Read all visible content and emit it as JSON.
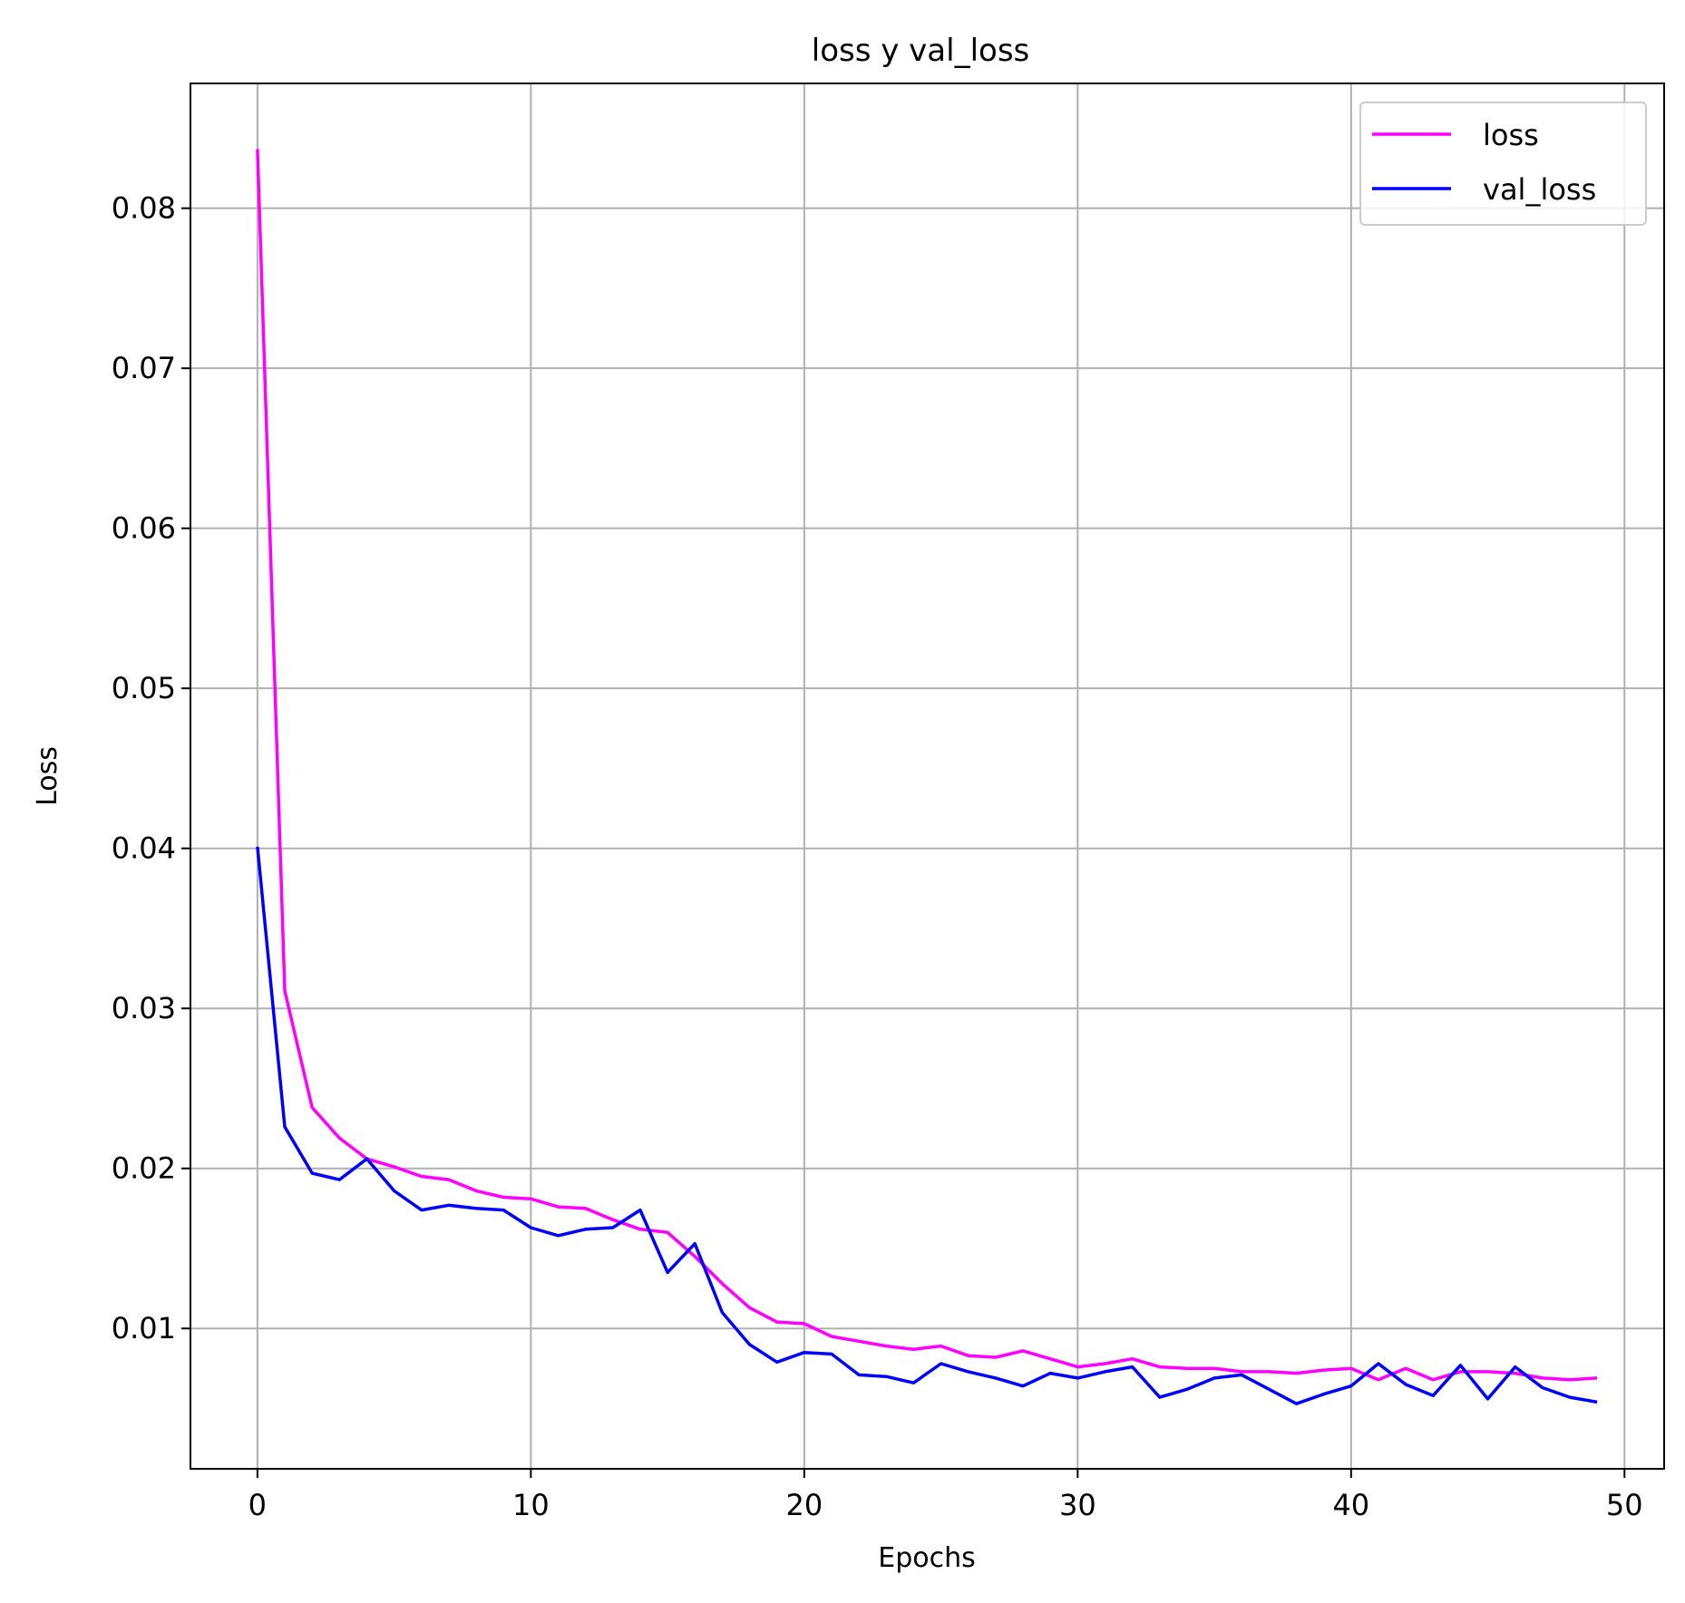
{
  "chart_data": {
    "type": "line",
    "title": "loss y val_loss",
    "xlabel": "Epochs",
    "ylabel": "Loss",
    "xlim": [
      -2.45,
      51.45
    ],
    "ylim": [
      0.00123,
      0.0878
    ],
    "xticks": [
      0,
      10,
      20,
      30,
      40,
      50
    ],
    "yticks": [
      0.01,
      0.02,
      0.03,
      0.04,
      0.05,
      0.06,
      0.07,
      0.08
    ],
    "xtick_labels": [
      "0",
      "10",
      "20",
      "30",
      "40",
      "50"
    ],
    "ytick_labels": [
      "0.01",
      "0.02",
      "0.03",
      "0.04",
      "0.05",
      "0.06",
      "0.07",
      "0.08"
    ],
    "grid": true,
    "legend_position": "top-right",
    "x": [
      0,
      1,
      2,
      3,
      4,
      5,
      6,
      7,
      8,
      9,
      10,
      11,
      12,
      13,
      14,
      15,
      16,
      17,
      18,
      19,
      20,
      21,
      22,
      23,
      24,
      25,
      26,
      27,
      28,
      29,
      30,
      31,
      32,
      33,
      34,
      35,
      36,
      37,
      38,
      39,
      40,
      41,
      42,
      43,
      44,
      45,
      46,
      47,
      48,
      49
    ],
    "series": [
      {
        "name": "loss",
        "color": "#ff00ff",
        "values": [
          0.0837,
          0.0311,
          0.0238,
          0.0219,
          0.0206,
          0.0201,
          0.0195,
          0.0193,
          0.0186,
          0.0182,
          0.0181,
          0.0176,
          0.0175,
          0.0168,
          0.0162,
          0.016,
          0.0145,
          0.0128,
          0.0113,
          0.0104,
          0.0103,
          0.0095,
          0.0092,
          0.0089,
          0.0087,
          0.0089,
          0.0083,
          0.0082,
          0.0086,
          0.0081,
          0.0076,
          0.0078,
          0.0081,
          0.0076,
          0.0075,
          0.0075,
          0.0073,
          0.0073,
          0.0072,
          0.0074,
          0.0075,
          0.0068,
          0.0075,
          0.0068,
          0.0073,
          0.0073,
          0.0072,
          0.0069,
          0.0068,
          0.0069
        ]
      },
      {
        "name": "val_loss",
        "color": "#0000ff",
        "values": [
          0.0401,
          0.0226,
          0.0197,
          0.0193,
          0.0206,
          0.0186,
          0.0174,
          0.0177,
          0.0175,
          0.0174,
          0.0163,
          0.0158,
          0.0162,
          0.0163,
          0.0174,
          0.0135,
          0.0153,
          0.011,
          0.009,
          0.0079,
          0.0085,
          0.0084,
          0.0071,
          0.007,
          0.0066,
          0.0078,
          0.0073,
          0.0069,
          0.0064,
          0.0072,
          0.0069,
          0.0073,
          0.0076,
          0.0057,
          0.0062,
          0.0069,
          0.0071,
          0.0062,
          0.0053,
          0.0059,
          0.0064,
          0.0078,
          0.0065,
          0.0058,
          0.0077,
          0.0056,
          0.0076,
          0.0063,
          0.0057,
          0.0054
        ]
      }
    ]
  }
}
